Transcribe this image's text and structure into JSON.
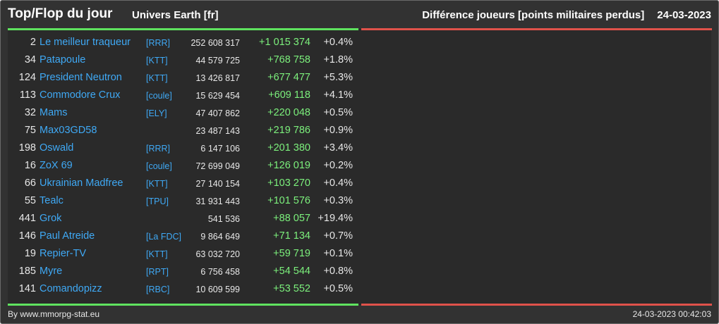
{
  "header": {
    "title": "Top/Flop du jour",
    "universe": "Univers Earth [fr]",
    "subtitle": "Différence joueurs [points militaires perdus]",
    "date": "24-03-2023"
  },
  "colors": {
    "top_bar": "#5fe35f",
    "flop_bar": "#e0524a",
    "player_name": "#3fa9f5",
    "gain": "#7cf07c"
  },
  "top_rows": [
    {
      "rank": "2",
      "name": "Le meilleur traqueur",
      "ally": "[RRR]",
      "points": "252 608 317",
      "diff": "+1 015 374",
      "pct": "+0.4%"
    },
    {
      "rank": "34",
      "name": "Patapoule",
      "ally": "[KTT]",
      "points": "44 579 725",
      "diff": "+768 758",
      "pct": "+1.8%"
    },
    {
      "rank": "124",
      "name": "President Neutron",
      "ally": "[KTT]",
      "points": "13 426 817",
      "diff": "+677 477",
      "pct": "+5.3%"
    },
    {
      "rank": "113",
      "name": "Commodore Crux",
      "ally": "[coule]",
      "points": "15 629 454",
      "diff": "+609 118",
      "pct": "+4.1%"
    },
    {
      "rank": "32",
      "name": "Mams",
      "ally": "[ELY]",
      "points": "47 407 862",
      "diff": "+220 048",
      "pct": "+0.5%"
    },
    {
      "rank": "75",
      "name": "Max03GD58",
      "ally": "",
      "points": "23 487 143",
      "diff": "+219 786",
      "pct": "+0.9%"
    },
    {
      "rank": "198",
      "name": "Oswald",
      "ally": "[RRR]",
      "points": "6 147 106",
      "diff": "+201 380",
      "pct": "+3.4%"
    },
    {
      "rank": "16",
      "name": "ZoX 69",
      "ally": "[coule]",
      "points": "72 699 049",
      "diff": "+126 019",
      "pct": "+0.2%"
    },
    {
      "rank": "66",
      "name": "Ukrainian Madfree",
      "ally": "[KTT]",
      "points": "27 140 154",
      "diff": "+103 270",
      "pct": "+0.4%"
    },
    {
      "rank": "55",
      "name": "Tealc",
      "ally": "[TPU]",
      "points": "31 931 443",
      "diff": "+101 576",
      "pct": "+0.3%"
    },
    {
      "rank": "441",
      "name": "Grok",
      "ally": "",
      "points": "541 536",
      "diff": "+88 057",
      "pct": "+19.4%"
    },
    {
      "rank": "146",
      "name": "Paul Atreide",
      "ally": "[La FDC]",
      "points": "9 864 649",
      "diff": "+71 134",
      "pct": "+0.7%"
    },
    {
      "rank": "19",
      "name": "Repier-TV",
      "ally": "[KTT]",
      "points": "63 032 720",
      "diff": "+59 719",
      "pct": "+0.1%"
    },
    {
      "rank": "185",
      "name": "Myre",
      "ally": "[RPT]",
      "points": "6 756 458",
      "diff": "+54 544",
      "pct": "+0.8%"
    },
    {
      "rank": "141",
      "name": "Comandopizz",
      "ally": "[RBC]",
      "points": "10 609 599",
      "diff": "+53 552",
      "pct": "+0.5%"
    }
  ],
  "footer": {
    "credit": "By www.mmorpg-stat.eu",
    "timestamp": "24-03-2023 00:42:03"
  }
}
